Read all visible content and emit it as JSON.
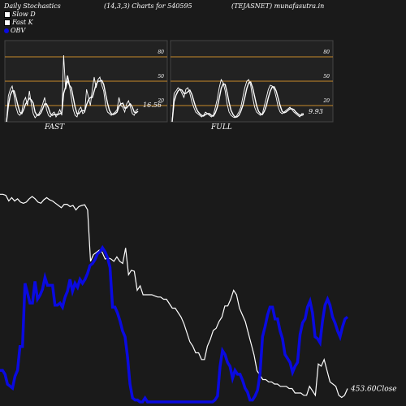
{
  "header": {
    "title": "Daily Stochastics",
    "params": "(14,3,3) Charts for 540595",
    "symbol": "(TEJASNET) munafasutra.in"
  },
  "legend": [
    {
      "label": "Slow  D",
      "color": "#ffffff"
    },
    {
      "label": "Fast K",
      "color": "#ffffff"
    },
    {
      "label": "OBV",
      "color": "#0a0ae0"
    }
  ],
  "colors": {
    "background": "#1a1a1a",
    "panel": "#222222",
    "level_line": "#c88a2a",
    "price": "#ffffff",
    "obv": "#0a0ae0"
  },
  "chart_data": [
    {
      "type": "line",
      "name": "FAST",
      "title": "FAST",
      "ylim": [
        0,
        100
      ],
      "levels": [
        80,
        50,
        20
      ],
      "level_labels": [
        "80",
        "50",
        "20"
      ],
      "last_value_label": "16.56",
      "series": [
        {
          "name": "K",
          "values": [
            0,
            32,
            40,
            44,
            32,
            18,
            10,
            8,
            12,
            25,
            30,
            20,
            38,
            22,
            10,
            5,
            8,
            10,
            15,
            22,
            30,
            15,
            8,
            6,
            10,
            12,
            6,
            10,
            15,
            8,
            82,
            40,
            50,
            45,
            30,
            15,
            8,
            6,
            15,
            18,
            10,
            12,
            40,
            30,
            20,
            40,
            55,
            42,
            52,
            55,
            45,
            38,
            20,
            12,
            10,
            8,
            10,
            12,
            15,
            30,
            20,
            18,
            12,
            22,
            26,
            18,
            10,
            8,
            14,
            16
          ]
        },
        {
          "name": "D",
          "values": [
            0,
            20,
            33,
            38,
            38,
            30,
            20,
            12,
            10,
            15,
            22,
            25,
            29,
            27,
            23,
            12,
            8,
            8,
            11,
            16,
            22,
            22,
            17,
            10,
            8,
            9,
            9,
            9,
            10,
            11,
            35,
            43,
            57,
            45,
            42,
            30,
            18,
            10,
            10,
            13,
            14,
            13,
            21,
            27,
            30,
            30,
            38,
            46,
            50,
            50,
            51,
            46,
            34,
            23,
            14,
            10,
            9,
            10,
            12,
            19,
            22,
            23,
            17,
            17,
            20,
            22,
            18,
            12,
            11,
            13
          ]
        }
      ]
    },
    {
      "type": "line",
      "name": "FULL",
      "title": "FULL",
      "ylim": [
        0,
        100
      ],
      "levels": [
        80,
        50,
        20
      ],
      "level_labels": [
        "80",
        "50",
        "20"
      ],
      "last_value_label": "9.93",
      "series": [
        {
          "name": "K",
          "values": [
            0,
            35,
            38,
            42,
            40,
            35,
            30,
            40,
            42,
            35,
            25,
            18,
            12,
            10,
            8,
            6,
            8,
            12,
            10,
            8,
            6,
            8,
            18,
            28,
            42,
            52,
            48,
            38,
            22,
            12,
            8,
            6,
            5,
            8,
            12,
            18,
            30,
            42,
            50,
            52,
            45,
            30,
            18,
            12,
            10,
            8,
            10,
            20,
            30,
            40,
            45,
            44,
            40,
            30,
            18,
            12,
            10,
            12,
            14,
            16,
            18,
            15,
            12,
            10,
            8,
            6,
            10,
            10
          ]
        },
        {
          "name": "D",
          "values": [
            0,
            25,
            33,
            38,
            40,
            39,
            35,
            35,
            37,
            39,
            34,
            26,
            18,
            13,
            10,
            8,
            7,
            9,
            10,
            10,
            8,
            7,
            11,
            18,
            29,
            41,
            47,
            46,
            36,
            24,
            14,
            9,
            6,
            6,
            8,
            13,
            20,
            30,
            41,
            48,
            49,
            42,
            31,
            20,
            13,
            10,
            9,
            13,
            20,
            30,
            38,
            43,
            43,
            38,
            29,
            20,
            13,
            11,
            12,
            14,
            16,
            16,
            15,
            12,
            10,
            8,
            8,
            9
          ]
        }
      ]
    },
    {
      "type": "line",
      "name": "Price / OBV",
      "last_value_label": "453.60Close",
      "series": [
        {
          "name": "Close",
          "values": [
            93,
            93,
            92.5,
            90,
            91.5,
            90,
            91,
            89.5,
            89,
            89.5,
            91,
            92,
            91,
            89.5,
            89,
            90.5,
            91.5,
            90.5,
            90,
            89,
            88,
            87,
            88.5,
            88.5,
            87.5,
            88,
            86,
            87.5,
            88,
            88.3,
            86,
            63,
            66,
            67,
            68,
            67,
            64,
            64.5,
            64,
            63,
            65,
            63,
            62,
            69,
            57,
            59,
            58.5,
            50,
            52,
            48,
            48,
            48,
            48,
            47.5,
            47,
            47,
            46,
            46,
            44,
            42,
            42,
            40,
            38,
            35,
            31,
            27,
            25,
            22,
            22,
            19,
            19,
            25,
            28,
            32,
            33,
            36,
            38,
            43,
            43,
            46,
            50,
            48,
            42,
            39,
            36,
            31,
            26,
            21,
            14,
            12,
            10,
            10,
            9,
            9,
            8,
            8,
            7,
            7,
            7,
            6,
            6,
            4,
            4,
            4,
            3,
            3,
            7,
            5,
            3,
            17,
            16,
            19,
            14,
            9,
            8,
            7,
            3,
            2,
            3,
            6
          ]
        },
        {
          "name": "OBV",
          "values": [
            16,
            16,
            14,
            9,
            8,
            7,
            13,
            16,
            28,
            28,
            60,
            55,
            50,
            50,
            61,
            52,
            54,
            57,
            63,
            59,
            59,
            59,
            49,
            49,
            50,
            48,
            53,
            56,
            62,
            56,
            60,
            58,
            62,
            60,
            62,
            65,
            69,
            70,
            72,
            75,
            76,
            78,
            76,
            73,
            68,
            48,
            48,
            45,
            41,
            36,
            33,
            23,
            9,
            2,
            1,
            1,
            0,
            0,
            2,
            0,
            0,
            0,
            0,
            0,
            0,
            0,
            0,
            0,
            0,
            0,
            0,
            0,
            0,
            0,
            0,
            0,
            0,
            0,
            0,
            0,
            0,
            0,
            0,
            0,
            0,
            0,
            1,
            3,
            18,
            26,
            24,
            20,
            18,
            12,
            16,
            14,
            14,
            11,
            7,
            5,
            1,
            1,
            3,
            6,
            14,
            33,
            38,
            44,
            48,
            48,
            42,
            42,
            36,
            32,
            24,
            22,
            20,
            15,
            18,
            20,
            34,
            40,
            42,
            48,
            51,
            45,
            33,
            32,
            30,
            41,
            49,
            52,
            49,
            43,
            40,
            36,
            33,
            38,
            42,
            43
          ]
        }
      ]
    }
  ]
}
